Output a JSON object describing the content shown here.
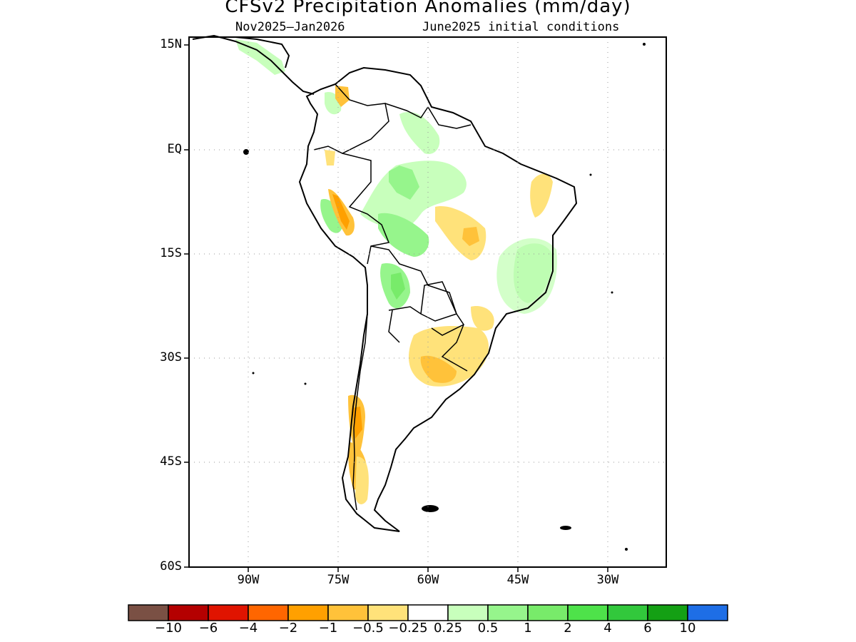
{
  "title": "CFSv2 Precipitation Anomalies (mm/day)",
  "subtitle_left": "Nov2025–Jan2026",
  "subtitle_right": "June2025 initial conditions",
  "y_axis_labels": [
    "15N",
    "EQ",
    "15S",
    "30S",
    "45S",
    "60S"
  ],
  "x_axis_labels": [
    "90W",
    "75W",
    "60W",
    "45W",
    "30W"
  ],
  "colorbar": {
    "labels": [
      "−10",
      "−6",
      "−4",
      "−2",
      "−1",
      "−0.5",
      "−0.25",
      "0.25",
      "0.5",
      "1",
      "2",
      "4",
      "6",
      "10"
    ],
    "colors": [
      "#7a5044",
      "#b40000",
      "#e01400",
      "#ff6600",
      "#ffa000",
      "#ffc23a",
      "#ffe27a",
      "#ffffff",
      "#c8ffbc",
      "#96f58c",
      "#78eb6a",
      "#4ee24a",
      "#32c83c",
      "#14a014",
      "#1e6ee6"
    ]
  },
  "colors": {
    "dry_light": "#ffe27a",
    "dry_mid": "#ffc23a",
    "dry_strong": "#ffa000",
    "wet_light": "#c8ffbc",
    "wet_mid": "#96f58c",
    "wet_strong": "#78eb6a",
    "coast": "#000000",
    "grid": "#999999"
  },
  "map": {
    "lon_range": [
      "100W",
      "20W"
    ],
    "lat_range": [
      "15N",
      "60S"
    ],
    "grid": "dotted",
    "region": "South America"
  }
}
